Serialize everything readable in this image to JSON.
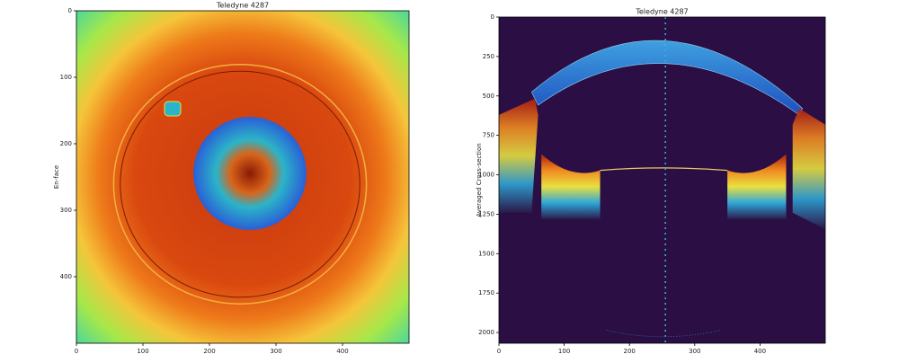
{
  "chart_data": [
    {
      "type": "image",
      "title": "Teledyne 4287",
      "ylabel": "En-face",
      "xlim": [
        0,
        500
      ],
      "ylim": [
        500,
        0
      ],
      "xticks": [
        0,
        100,
        200,
        300,
        400
      ],
      "yticks": [
        0,
        100,
        200,
        300,
        400
      ]
    },
    {
      "type": "image",
      "title": "Teledyne 4287",
      "ylabel": "Averaged Cross-section",
      "xlim": [
        0,
        500
      ],
      "ylim": [
        2068,
        0
      ],
      "xticks": [
        0,
        100,
        200,
        300,
        400
      ],
      "yticks": [
        0,
        250,
        500,
        750,
        1000,
        1250,
        1500,
        1750,
        2000
      ]
    }
  ]
}
